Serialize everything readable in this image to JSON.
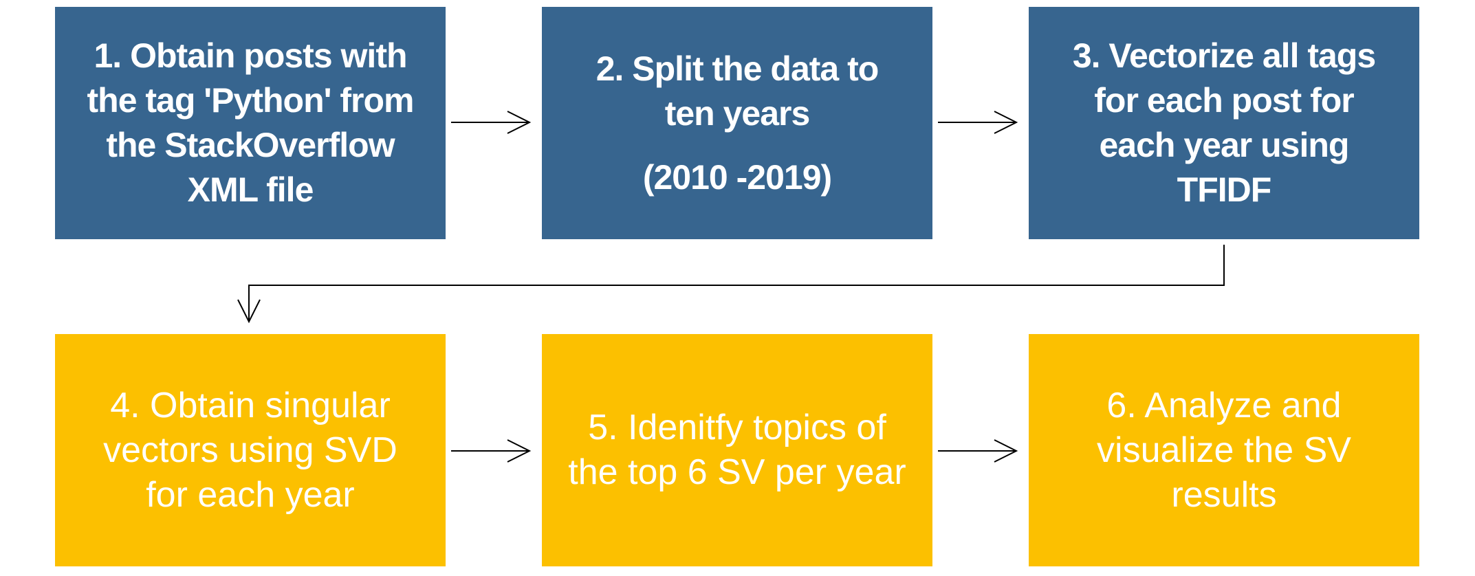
{
  "colors": {
    "row1_fill": "#37658f",
    "row2_fill": "#fcc000",
    "text": "#ffffff",
    "connector": "#000000"
  },
  "steps": [
    {
      "lines": [
        "1. Obtain posts with",
        "the tag 'Python' from",
        "the StackOverflow",
        "XML file"
      ]
    },
    {
      "lines": [
        "2. Split the data to",
        "ten years"
      ],
      "extra": "(2010 -2019)"
    },
    {
      "lines": [
        "3. Vectorize all tags",
        "for each post for",
        "each year using",
        "TFIDF"
      ]
    },
    {
      "lines": [
        "4. Obtain singular",
        "vectors using SVD",
        "for each year"
      ]
    },
    {
      "lines": [
        "5. Idenitfy topics of",
        "the top 6 SV per year"
      ]
    },
    {
      "lines": [
        "6. Analyze and",
        "visualize the SV",
        "results"
      ]
    }
  ]
}
